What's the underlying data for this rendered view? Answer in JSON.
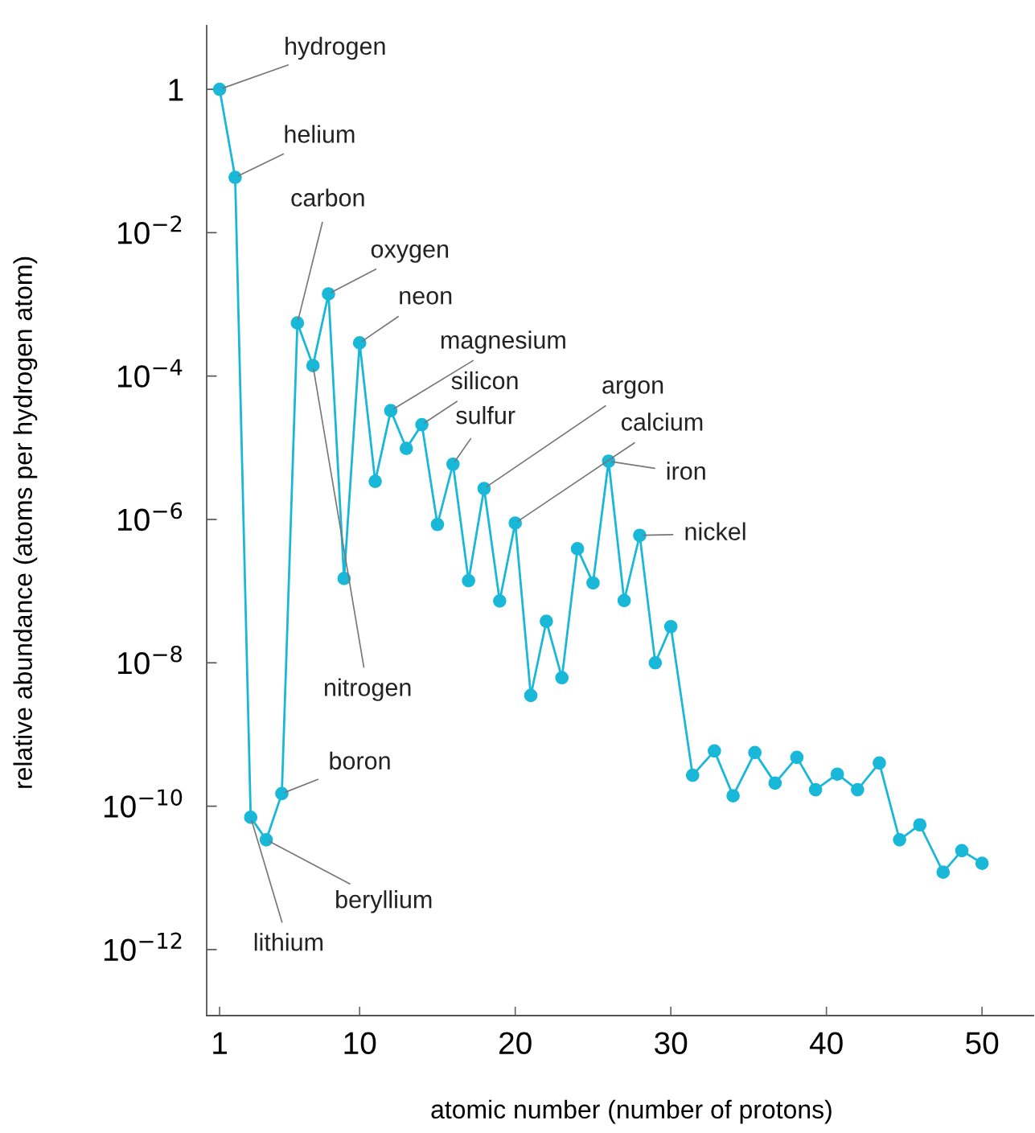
{
  "chart_data": {
    "type": "line",
    "xlabel": "atomic number (number of protons)",
    "ylabel": "relative abundance (atoms per hydrogen atom)",
    "log": "y",
    "grid": false,
    "marker": "circle",
    "line_style": "solid",
    "xlim": [
      0.17,
      53.3
    ],
    "xticks": [
      1,
      10,
      20,
      30,
      40,
      50
    ],
    "ylim": [
      1.2e-13,
      7.7
    ],
    "yticks": [
      {
        "value": 1,
        "label": "1"
      },
      {
        "value": 0.01,
        "label": "10$^{−2}$"
      },
      {
        "value": 0.0001,
        "label": "10$^{−4}$"
      },
      {
        "value": 1e-06,
        "label": "10$^{−6}$"
      },
      {
        "value": 1e-08,
        "label": "10$^{−8}$"
      },
      {
        "value": 1e-10,
        "label": "10$^{−10}$"
      },
      {
        "value": 1e-12,
        "label": "10$^{−12}$"
      }
    ],
    "series": [
      {
        "color": "#1ab8d8",
        "x": [
          1,
          2,
          3,
          4,
          5,
          6,
          7,
          8,
          9,
          10,
          11,
          12,
          13,
          14,
          15,
          16,
          17,
          18,
          19,
          20,
          21,
          22,
          23,
          24,
          25,
          26,
          27,
          28,
          29,
          30,
          31.4,
          32.8,
          34.0,
          35.4,
          36.7,
          38.1,
          39.3,
          40.7,
          42.0,
          43.4,
          44.7,
          46.0,
          47.5,
          48.7,
          50.0
        ],
        "values": [
          1,
          0.059,
          7e-11,
          3.4e-11,
          1.5e-10,
          0.00055,
          0.00014,
          0.0014,
          1.5e-07,
          0.00029,
          3.4e-06,
          3.3e-05,
          9.8e-06,
          2.1e-05,
          8.5e-07,
          5.9e-06,
          1.4e-07,
          2.7e-06,
          7.3e-08,
          8.9e-07,
          3.5e-09,
          3.8e-08,
          6.2e-09,
          3.9e-07,
          1.3e-07,
          6.5e-06,
          7.4e-08,
          6e-07,
          1e-08,
          3.2e-08,
          2.7e-10,
          5.9e-10,
          1.4e-10,
          5.6e-10,
          2.1e-10,
          4.8e-10,
          1.7e-10,
          2.8e-10,
          1.7e-10,
          4e-10,
          3.4e-11,
          5.5e-11,
          1.2e-11,
          2.4e-11,
          1.6e-11
        ]
      }
    ],
    "annotations": [
      {
        "text": "hydrogen",
        "x": 1,
        "y": 1
      },
      {
        "text": "helium",
        "x": 2,
        "y": 0.059
      },
      {
        "text": "carbon",
        "x": 6,
        "y": 0.00055
      },
      {
        "text": "oxygen",
        "x": 8,
        "y": 0.0014
      },
      {
        "text": "neon",
        "x": 10,
        "y": 0.00029
      },
      {
        "text": "magnesium",
        "x": 12,
        "y": 3.3e-05
      },
      {
        "text": "silicon",
        "x": 14,
        "y": 2.1e-05
      },
      {
        "text": "sulfur",
        "x": 16,
        "y": 5.9e-06
      },
      {
        "text": "argon",
        "x": 18,
        "y": 2.7e-06
      },
      {
        "text": "calcium",
        "x": 20,
        "y": 8.9e-07
      },
      {
        "text": "iron",
        "x": 26,
        "y": 6.5e-06
      },
      {
        "text": "nickel",
        "x": 28,
        "y": 6e-07
      },
      {
        "text": "nitrogen",
        "x": 7,
        "y": 0.00014
      },
      {
        "text": "boron",
        "x": 5,
        "y": 1.5e-10
      },
      {
        "text": "beryllium",
        "x": 4,
        "y": 3.4e-11
      },
      {
        "text": "lithium",
        "x": 3,
        "y": 7e-11
      }
    ]
  }
}
